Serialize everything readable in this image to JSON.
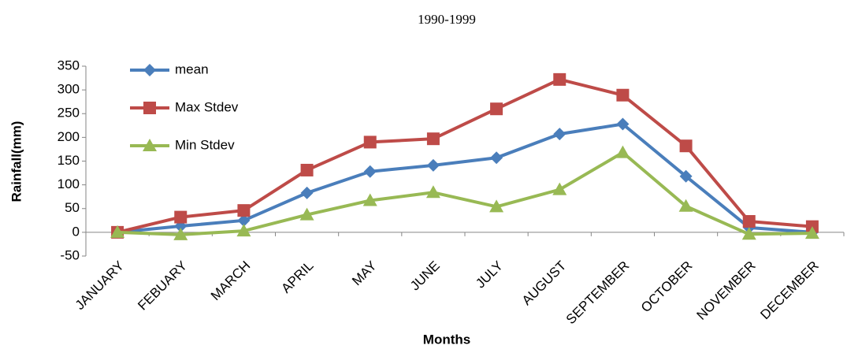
{
  "chart_data": {
    "type": "line",
    "title": "1990-1999",
    "x_label": "Months",
    "y_label": "Rainfall(mm)",
    "categories": [
      "JANUARY",
      "FEBUARY",
      "MARCH",
      "APRIL",
      "MAY",
      "JUNE",
      "JULY",
      "AUGUST",
      "SEPTEMBER",
      "OCTOBER",
      "NOVEMBER",
      "DECEMBER"
    ],
    "series": [
      {
        "name": "mean",
        "color": "#4a7ebb",
        "marker": "diamond",
        "values": [
          0,
          13,
          25,
          83,
          128,
          141,
          157,
          207,
          228,
          118,
          10,
          0
        ]
      },
      {
        "name": "Max Stdev",
        "color": "#be4b48",
        "marker": "square",
        "values": [
          0,
          32,
          46,
          131,
          190,
          197,
          260,
          322,
          289,
          182,
          23,
          12
        ]
      },
      {
        "name": "Min Stdev",
        "color": "#98b954",
        "marker": "triangle",
        "values": [
          0,
          -5,
          3,
          37,
          67,
          84,
          54,
          90,
          168,
          55,
          -4,
          -2
        ]
      }
    ],
    "ylim": [
      -50,
      350
    ],
    "yticks": [
      -50,
      0,
      50,
      100,
      150,
      200,
      250,
      300,
      350
    ],
    "legend": "top-left"
  }
}
